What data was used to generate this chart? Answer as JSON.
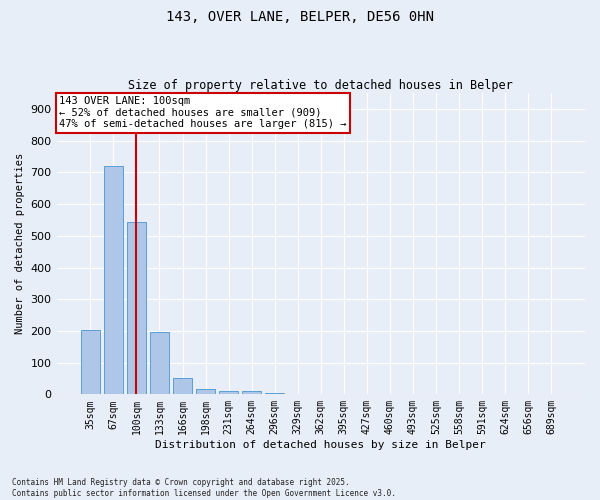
{
  "title1": "143, OVER LANE, BELPER, DE56 0HN",
  "title2": "Size of property relative to detached houses in Belper",
  "xlabel": "Distribution of detached houses by size in Belper",
  "ylabel": "Number of detached properties",
  "categories": [
    "35sqm",
    "67sqm",
    "100sqm",
    "133sqm",
    "166sqm",
    "198sqm",
    "231sqm",
    "264sqm",
    "296sqm",
    "329sqm",
    "362sqm",
    "395sqm",
    "427sqm",
    "460sqm",
    "493sqm",
    "525sqm",
    "558sqm",
    "591sqm",
    "624sqm",
    "656sqm",
    "689sqm"
  ],
  "values": [
    203,
    720,
    543,
    196,
    50,
    18,
    12,
    9,
    5,
    0,
    0,
    0,
    0,
    0,
    0,
    0,
    0,
    0,
    0,
    0,
    0
  ],
  "bar_color": "#aec6e8",
  "bar_edge_color": "#5a9fd4",
  "highlight_index": 2,
  "vline_x": 2.0,
  "vline_color": "#cc0000",
  "annotation_text": "143 OVER LANE: 100sqm\n← 52% of detached houses are smaller (909)\n47% of semi-detached houses are larger (815) →",
  "annotation_box_color": "#ffffff",
  "annotation_box_edge": "#cc0000",
  "ylim": [
    0,
    950
  ],
  "yticks": [
    0,
    100,
    200,
    300,
    400,
    500,
    600,
    700,
    800,
    900
  ],
  "bg_color": "#e8eef8",
  "grid_color": "#ffffff",
  "footer": "Contains HM Land Registry data © Crown copyright and database right 2025.\nContains public sector information licensed under the Open Government Licence v3.0."
}
